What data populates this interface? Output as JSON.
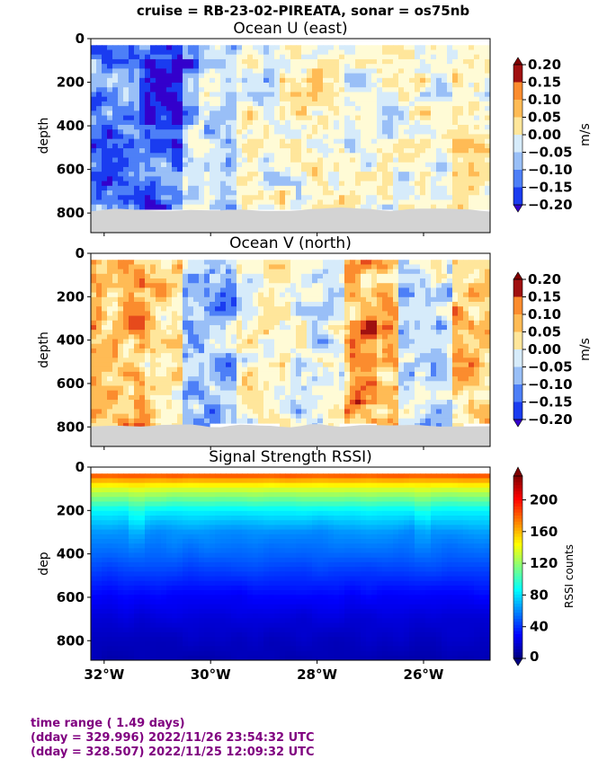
{
  "suptitle": "cruise = RB-23-02-PIREATA,  sonar = os75nb",
  "footer": {
    "line1": "time range ( 1.49 days)",
    "line2": "(dday = 329.996) 2022/11/26 23:54:32 UTC",
    "line3": "(dday = 328.507) 2022/11/25 12:09:32 UTC"
  },
  "colors": {
    "bottom_mask": "#d3d3d3",
    "footer_text": "#800080",
    "cmap_diverging": [
      "#3300cc",
      "#1a3cf0",
      "#4d7ff7",
      "#99bff7",
      "#d6ebfa",
      "#fffbd6",
      "#ffe69b",
      "#ffbb55",
      "#fb8c2e",
      "#e64a1c",
      "#a01010"
    ],
    "cmap_jet": [
      "#00007f",
      "#0000ff",
      "#007fff",
      "#00ffff",
      "#7fff7f",
      "#ffff00",
      "#ff7f00",
      "#ff0000",
      "#7f0000"
    ]
  },
  "chart_data": [
    {
      "type": "heatmap",
      "title": "Ocean U (east)",
      "ylabel": "depth",
      "xlabel": "",
      "colorbar_label": "m/s",
      "xlim": [
        -32.25,
        -24.75
      ],
      "ylim": [
        890,
        0
      ],
      "xticks": [],
      "yticks": [
        0,
        200,
        400,
        600,
        800
      ],
      "ytick_labels": [
        "0",
        "200",
        "400",
        "600",
        "800"
      ],
      "clim": [
        -0.2,
        0.2
      ],
      "colorbar_ticks": [
        "0.20",
        "0.15",
        "0.10",
        "0.05",
        "0.00",
        "−0.05",
        "−0.10",
        "−0.15",
        "−0.20"
      ],
      "bottom_depth_approx": 780,
      "region_means": {
        "lon_bands": [
          -32.25,
          -31.25,
          -30.5,
          -29.5,
          -28.5,
          -27.5,
          -26.5,
          -25.5,
          -24.75
        ],
        "mean_u": [
          -0.11,
          -0.14,
          -0.06,
          -0.02,
          0.01,
          -0.02,
          0.0,
          0.03
        ]
      }
    },
    {
      "type": "heatmap",
      "title": "Ocean V (north)",
      "ylabel": "depth",
      "xlabel": "",
      "colorbar_label": "m/s",
      "xlim": [
        -32.25,
        -24.75
      ],
      "ylim": [
        890,
        0
      ],
      "xticks": [],
      "yticks": [
        0,
        200,
        400,
        600,
        800
      ],
      "ytick_labels": [
        "0",
        "200",
        "400",
        "600",
        "800"
      ],
      "clim": [
        -0.2,
        0.2
      ],
      "colorbar_ticks": [
        "0.20",
        "0.15",
        "0.10",
        "0.05",
        "0.00",
        "−0.05",
        "−0.10",
        "−0.15",
        "−0.20"
      ],
      "bottom_depth_approx": 790,
      "region_means": {
        "lon_bands": [
          -32.25,
          -31.25,
          -30.5,
          -29.5,
          -28.5,
          -27.5,
          -26.5,
          -25.5,
          -24.75
        ],
        "mean_v": [
          0.08,
          0.04,
          -0.08,
          0.0,
          -0.03,
          0.07,
          -0.05,
          0.06
        ]
      }
    },
    {
      "type": "heatmap",
      "title": "Signal Strength RSSI)",
      "ylabel": "dep",
      "xlabel": "",
      "colorbar_label": "RSSI counts",
      "xlim": [
        -32.25,
        -24.75
      ],
      "ylim": [
        890,
        0
      ],
      "xticks": [
        -32,
        -30,
        -28,
        -26
      ],
      "xtick_labels": [
        "32°W",
        "30°W",
        "28°W",
        "26°W"
      ],
      "yticks": [
        0,
        200,
        400,
        600,
        800
      ],
      "ytick_labels": [
        "0",
        "200",
        "400",
        "600",
        "800"
      ],
      "clim": [
        0,
        230
      ],
      "colorbar_ticks": [
        "200",
        "160",
        "120",
        "80",
        "40",
        "0"
      ],
      "depth_profile": {
        "depth": [
          20,
          50,
          100,
          200,
          300,
          400,
          500,
          600,
          700,
          800,
          880
        ],
        "rssi": [
          200,
          170,
          135,
          85,
          62,
          52,
          40,
          28,
          20,
          15,
          12
        ]
      }
    }
  ]
}
